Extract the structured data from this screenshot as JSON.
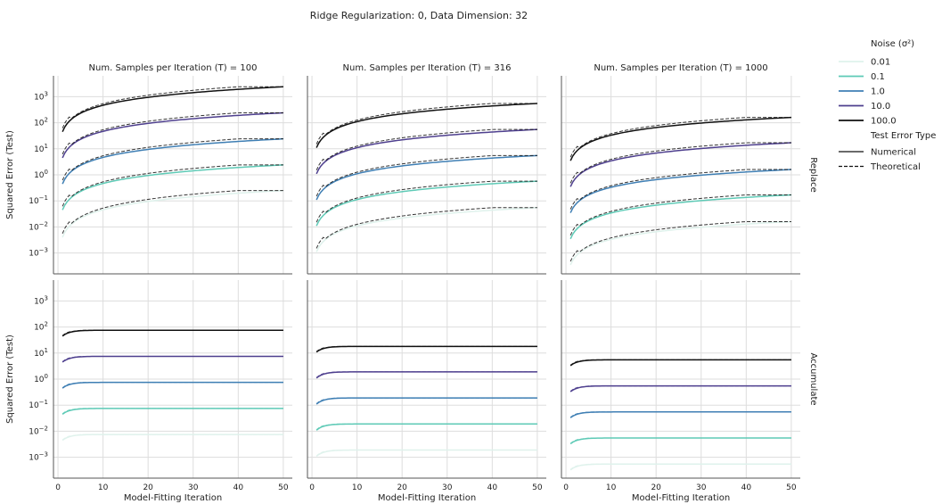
{
  "suptitle": "Ridge Regularization: 0, Data Dimension: 32",
  "legend": {
    "noise_title": "Noise (σ²)",
    "noise_entries": [
      {
        "label": "0.01",
        "color": "#dff2ec"
      },
      {
        "label": "0.1",
        "color": "#5ecab6"
      },
      {
        "label": "1.0",
        "color": "#3f7fb4"
      },
      {
        "label": "10.0",
        "color": "#4e3f8e"
      },
      {
        "label": "100.0",
        "color": "#111111"
      }
    ],
    "type_title": "Test Error Type",
    "type_entries": [
      {
        "label": "Numerical",
        "style": "solid"
      },
      {
        "label": "Theoretical",
        "style": "dashed"
      }
    ]
  },
  "column_titles": [
    "Num. Samples per Iteration (T) = 100",
    "Num. Samples per Iteration (T) = 316",
    "Num. Samples per Iteration (T) = 1000"
  ],
  "row_labels": [
    "Replace",
    "Accumulate"
  ],
  "axis_labels": {
    "x": "Model-Fitting Iteration",
    "y": "Squared Error (Test)"
  },
  "x_ticks": [
    "0",
    "10",
    "20",
    "30",
    "40",
    "50"
  ],
  "y_ticks": [
    {
      "exp": -3,
      "base": "10",
      "sup": "−3"
    },
    {
      "exp": -2,
      "base": "10",
      "sup": "−2"
    },
    {
      "exp": -1,
      "base": "10",
      "sup": "−1"
    },
    {
      "exp": 0,
      "base": "10",
      "sup": "0"
    },
    {
      "exp": 1,
      "base": "10",
      "sup": "1"
    },
    {
      "exp": 2,
      "base": "10",
      "sup": "2"
    },
    {
      "exp": 3,
      "base": "10",
      "sup": "3"
    }
  ],
  "chart_data": {
    "type": "line",
    "x_range": [
      1,
      50
    ],
    "xlim": [
      -1,
      52
    ],
    "ylim_log10": [
      -3.8,
      3.8
    ],
    "y_scale": "log",
    "grid": true,
    "legend_placement": "right",
    "noise_levels": [
      "0.01",
      "0.1",
      "1.0",
      "10.0",
      "100.0"
    ],
    "panels": [
      {
        "row": "Replace",
        "col": "T = 100",
        "mode": "replace",
        "series": [
          {
            "noise": "0.01",
            "start": 0.004,
            "end": 0.25
          },
          {
            "noise": "0.1",
            "start": 0.045,
            "end": 2.4
          },
          {
            "noise": "1.0",
            "start": 0.45,
            "end": 24
          },
          {
            "noise": "10.0",
            "start": 4.5,
            "end": 240
          },
          {
            "noise": "100.0",
            "start": 45,
            "end": 2400
          }
        ]
      },
      {
        "row": "Replace",
        "col": "T = 316",
        "mode": "replace",
        "series": [
          {
            "noise": "0.01",
            "start": 0.0011,
            "end": 0.055
          },
          {
            "noise": "0.1",
            "start": 0.011,
            "end": 0.57
          },
          {
            "noise": "1.0",
            "start": 0.11,
            "end": 5.5
          },
          {
            "noise": "10.0",
            "start": 1.1,
            "end": 55
          },
          {
            "noise": "100.0",
            "start": 11,
            "end": 550
          }
        ]
      },
      {
        "row": "Replace",
        "col": "T = 1000",
        "mode": "replace",
        "series": [
          {
            "noise": "0.01",
            "start": 0.00035,
            "end": 0.016
          },
          {
            "noise": "0.1",
            "start": 0.0035,
            "end": 0.17
          },
          {
            "noise": "1.0",
            "start": 0.035,
            "end": 1.6
          },
          {
            "noise": "10.0",
            "start": 0.35,
            "end": 17
          },
          {
            "noise": "100.0",
            "start": 3.5,
            "end": 160
          }
        ]
      },
      {
        "row": "Accumulate",
        "col": "T = 100",
        "mode": "accumulate",
        "series": [
          {
            "noise": "0.01",
            "start": 0.0045,
            "end": 0.0075
          },
          {
            "noise": "0.1",
            "start": 0.045,
            "end": 0.075
          },
          {
            "noise": "1.0",
            "start": 0.45,
            "end": 0.75
          },
          {
            "noise": "10.0",
            "start": 4.5,
            "end": 7.5
          },
          {
            "noise": "100.0",
            "start": 45,
            "end": 75
          }
        ]
      },
      {
        "row": "Accumulate",
        "col": "T = 316",
        "mode": "accumulate",
        "series": [
          {
            "noise": "0.01",
            "start": 0.0011,
            "end": 0.0019
          },
          {
            "noise": "0.1",
            "start": 0.011,
            "end": 0.019
          },
          {
            "noise": "1.0",
            "start": 0.11,
            "end": 0.19
          },
          {
            "noise": "10.0",
            "start": 1.1,
            "end": 1.9
          },
          {
            "noise": "100.0",
            "start": 11,
            "end": 18
          }
        ]
      },
      {
        "row": "Accumulate",
        "col": "T = 1000",
        "mode": "accumulate",
        "series": [
          {
            "noise": "0.01",
            "start": 0.00033,
            "end": 0.00055
          },
          {
            "noise": "0.1",
            "start": 0.0033,
            "end": 0.0055
          },
          {
            "noise": "1.0",
            "start": 0.033,
            "end": 0.055
          },
          {
            "noise": "10.0",
            "start": 0.33,
            "end": 0.55
          },
          {
            "noise": "100.0",
            "start": 3.3,
            "end": 5.5
          }
        ]
      }
    ]
  }
}
